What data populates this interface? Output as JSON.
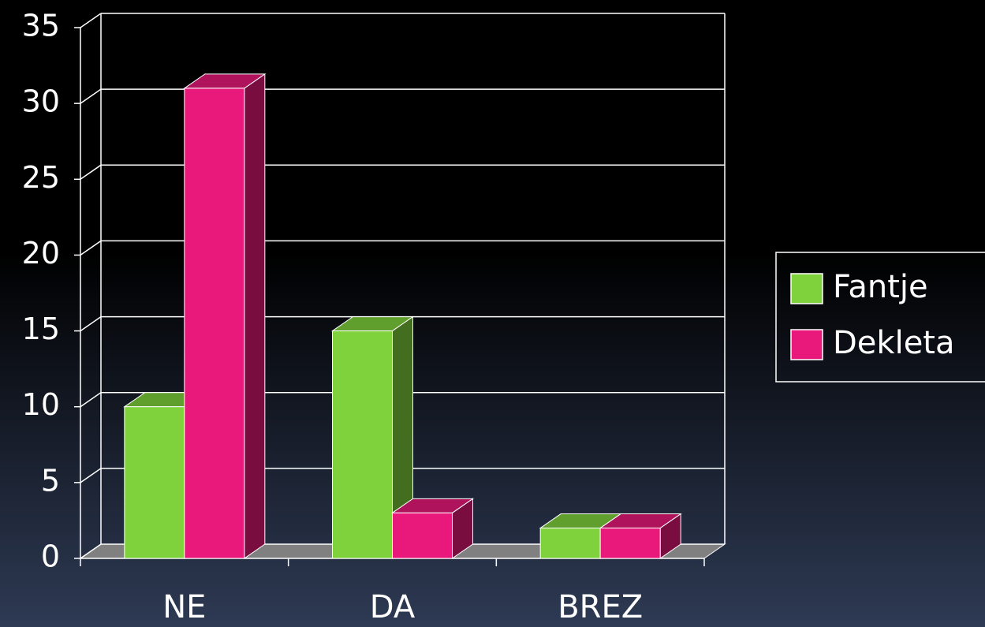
{
  "chart_data": {
    "type": "bar3d",
    "categories": [
      "NE",
      "DA",
      "BREZ"
    ],
    "series": [
      {
        "name": "Fantje",
        "color": "#80d23c",
        "values": [
          10,
          15,
          2
        ]
      },
      {
        "name": "Dekleta",
        "color": "#e8197a",
        "values": [
          31,
          3,
          2
        ]
      }
    ],
    "ylim": [
      0,
      35
    ],
    "yticks": [
      0,
      5,
      10,
      15,
      20,
      25,
      30,
      35
    ],
    "grid": true,
    "legend": "right"
  }
}
